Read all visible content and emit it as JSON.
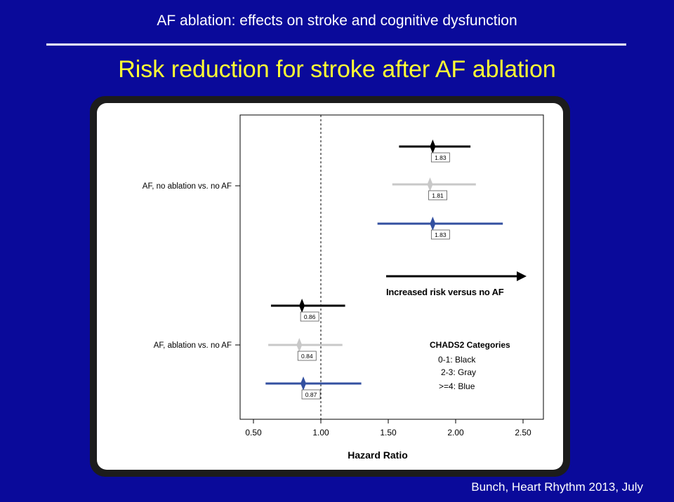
{
  "slide": {
    "header": "AF ablation: effects on stroke and cognitive dysfunction",
    "title": "Risk reduction for stroke after AF ablation",
    "citation": "Bunch, Heart Rhythm 2013, July"
  },
  "colors": {
    "background": "#0a0a9a",
    "title": "#ffff33",
    "black_series": "#000000",
    "gray_series": "#c8c8c8",
    "blue_series": "#3350a0"
  },
  "chart_data": {
    "type": "forest",
    "xlabel": "Hazard Ratio",
    "ylabel": "",
    "xlim": [
      0.43,
      2.57
    ],
    "x_ticks": [
      "0.50",
      "1.00",
      "1.50",
      "2.00",
      "2.50"
    ],
    "x_tick_values": [
      0.5,
      1.0,
      1.5,
      2.0,
      2.5
    ],
    "reference_line": 1.0,
    "groups": [
      {
        "label": "AF, no ablation vs. no AF",
        "estimates": [
          {
            "category": "0-1",
            "color": "#000000",
            "hr": 1.83,
            "ci": [
              1.58,
              2.11
            ],
            "label": "1.83"
          },
          {
            "category": "2-3",
            "color": "#c8c8c8",
            "hr": 1.81,
            "ci": [
              1.53,
              2.15
            ],
            "label": "1.81"
          },
          {
            "category": ">=4",
            "color": "#3350a0",
            "hr": 1.83,
            "ci": [
              1.42,
              2.35
            ],
            "label": "1.83"
          }
        ]
      },
      {
        "label": "AF, ablation vs. no AF",
        "estimates": [
          {
            "category": "0-1",
            "color": "#000000",
            "hr": 0.86,
            "ci": [
              0.63,
              1.18
            ],
            "label": "0.86"
          },
          {
            "category": "2-3",
            "color": "#c8c8c8",
            "hr": 0.84,
            "ci": [
              0.61,
              1.16
            ],
            "label": "0.84"
          },
          {
            "category": ">=4",
            "color": "#3350a0",
            "hr": 0.87,
            "ci": [
              0.59,
              1.3
            ],
            "label": "0.87"
          }
        ]
      }
    ],
    "annotation": "Increased risk versus no AF",
    "legend": {
      "title": "CHADS2 Categories",
      "entries": [
        "0-1: Black",
        "2-3: Gray",
        ">=4: Blue"
      ],
      "placement": "lower-right"
    },
    "grid": false
  }
}
